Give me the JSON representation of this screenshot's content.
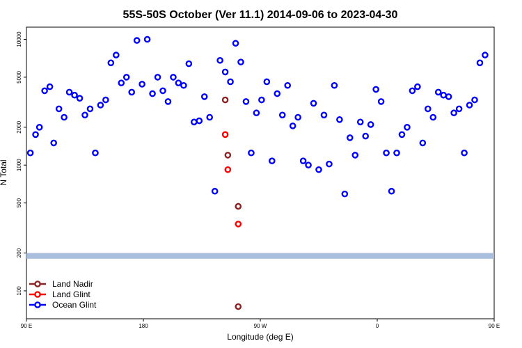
{
  "chart_data": {
    "type": "scatter",
    "title": "55S-50S October (Ver 11.1)   2014-09-06 to 2023-04-30",
    "xlabel": "Longitude (deg E)",
    "ylabel": "N Total",
    "x_axis": {
      "range": [
        90,
        450
      ],
      "ticks": [
        {
          "value": 90,
          "label": "90 E"
        },
        {
          "value": 180,
          "label": "180"
        },
        {
          "value": 270,
          "label": "90 W"
        },
        {
          "value": 360,
          "label": "0"
        },
        {
          "value": 450,
          "label": "90 E"
        }
      ]
    },
    "y_axis": {
      "scale": "log",
      "range": [
        60,
        12500
      ],
      "ticks": [
        100,
        200,
        500,
        1000,
        2000,
        5000,
        10000
      ]
    },
    "legend": {
      "placement": "bottom-left",
      "entries": [
        {
          "label": "Land Nadir",
          "color": "#8b2323"
        },
        {
          "label": "Land Glint",
          "color": "#ff0000"
        },
        {
          "label": "Ocean Glint",
          "color": "#0000ff"
        }
      ]
    },
    "band": {
      "y_range": [
        180,
        200
      ],
      "color": "#a9bedc"
    },
    "series": [
      {
        "name": "Land Nadir",
        "color": "#8b2323",
        "points": [
          [
            243,
            3300
          ],
          [
            245,
            1200
          ],
          [
            253,
            470
          ],
          [
            253,
            75
          ]
        ]
      },
      {
        "name": "Land Glint",
        "color": "#ff0000",
        "points": [
          [
            243,
            1750
          ],
          [
            245,
            920
          ],
          [
            253,
            340
          ]
        ]
      },
      {
        "name": "Ocean Glint",
        "color": "#0000ff",
        "points": [
          [
            93,
            1250
          ],
          [
            97,
            1750
          ],
          [
            100,
            2000
          ],
          [
            104,
            3900
          ],
          [
            108,
            4200
          ],
          [
            111,
            1500
          ],
          [
            115,
            2800
          ],
          [
            119,
            2400
          ],
          [
            123,
            3800
          ],
          [
            127,
            3600
          ],
          [
            131,
            3400
          ],
          [
            135,
            2500
          ],
          [
            139,
            2800
          ],
          [
            143,
            1250
          ],
          [
            147,
            3000
          ],
          [
            151,
            3300
          ],
          [
            155,
            6500
          ],
          [
            159,
            7500
          ],
          [
            163,
            4500
          ],
          [
            167,
            5000
          ],
          [
            171,
            3800
          ],
          [
            175,
            9800
          ],
          [
            179,
            4400
          ],
          [
            183,
            10000
          ],
          [
            187,
            3700
          ],
          [
            191,
            5000
          ],
          [
            195,
            3900
          ],
          [
            199,
            3200
          ],
          [
            203,
            5000
          ],
          [
            207,
            4500
          ],
          [
            211,
            4300
          ],
          [
            215,
            6400
          ],
          [
            219,
            2200
          ],
          [
            223,
            2250
          ],
          [
            227,
            3500
          ],
          [
            231,
            2400
          ],
          [
            235,
            620
          ],
          [
            239,
            6800
          ],
          [
            243,
            5500
          ],
          [
            247,
            4600
          ],
          [
            251,
            9300
          ],
          [
            255,
            6600
          ],
          [
            259,
            3200
          ],
          [
            263,
            1250
          ],
          [
            267,
            2600
          ],
          [
            271,
            3300
          ],
          [
            275,
            4600
          ],
          [
            279,
            1080
          ],
          [
            283,
            3700
          ],
          [
            287,
            2500
          ],
          [
            291,
            4300
          ],
          [
            295,
            2050
          ],
          [
            299,
            2400
          ],
          [
            303,
            1080
          ],
          [
            307,
            1000
          ],
          [
            311,
            3100
          ],
          [
            315,
            920
          ],
          [
            319,
            2500
          ],
          [
            323,
            1020
          ],
          [
            327,
            4300
          ],
          [
            331,
            2300
          ],
          [
            335,
            590
          ],
          [
            339,
            1650
          ],
          [
            343,
            1200
          ],
          [
            347,
            2200
          ],
          [
            351,
            1700
          ],
          [
            355,
            2100
          ],
          [
            359,
            4000
          ],
          [
            363,
            3200
          ],
          [
            367,
            1250
          ],
          [
            371,
            620
          ],
          [
            375,
            1250
          ],
          [
            379,
            1750
          ],
          [
            383,
            2000
          ],
          [
            387,
            3900
          ],
          [
            391,
            4200
          ],
          [
            395,
            1500
          ],
          [
            399,
            2800
          ],
          [
            403,
            2400
          ],
          [
            407,
            3800
          ],
          [
            411,
            3600
          ],
          [
            415,
            3500
          ],
          [
            419,
            2600
          ],
          [
            423,
            2800
          ],
          [
            427,
            1250
          ],
          [
            431,
            3000
          ],
          [
            435,
            3300
          ],
          [
            439,
            6500
          ],
          [
            443,
            7500
          ]
        ]
      }
    ]
  }
}
